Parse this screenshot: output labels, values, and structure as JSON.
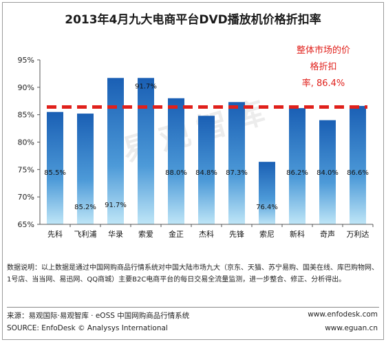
{
  "chart_data": {
    "type": "bar",
    "title": "2013年4月九大电商平台DVD播放机价格折扣率",
    "categories": [
      "先科",
      "飞利浦",
      "华录",
      "索爱",
      "金正",
      "杰科",
      "先锋",
      "索尼",
      "新科",
      "奇声",
      "万利达"
    ],
    "values": [
      85.5,
      85.2,
      91.7,
      91.7,
      88.0,
      84.8,
      87.3,
      76.4,
      86.2,
      84.0,
      86.6
    ],
    "value_labels": [
      "85.5%",
      "85.2%",
      "91.7%",
      "91.7%",
      "88.0%",
      "84.8%",
      "87.3%",
      "76.4%",
      "86.2%",
      "84.0%",
      "86.6%"
    ],
    "reference_line": {
      "value": 86.4,
      "style": "dashed",
      "color": "#e0201b"
    },
    "ylim": [
      65,
      95
    ],
    "yticks": [
      "65%",
      "70%",
      "75%",
      "80%",
      "85%",
      "90%",
      "95%"
    ],
    "grid": false,
    "legend": "none",
    "bar_color_top": "#1a5fb4",
    "bar_color_bottom": "#bfe6f7"
  },
  "annotation": {
    "lines": [
      "整体市场的价",
      "格折扣",
      "率, 86.4%"
    ],
    "color": "#e0201b"
  },
  "watermark": "易观智库",
  "footer": {
    "note": "数据说明：以上数据是通过中国网购商品行情系统对中国大陆市场九大（京东、天猫、苏宁易购、国美在线、库巴购物网、1号店、当当网、易迅网、QQ商城）主要B2C电商平台的每日交易全流量监测，进一步整合、修正、分析得出。",
    "source_cn": "来源：易观国际·易观智库 · eOSS 中国网购商品行情系统",
    "source_en": "SOURCE: EnfoDesk © Analysys International",
    "site1": "www.enfodesk.com",
    "site2": "www.eguan.cn"
  }
}
